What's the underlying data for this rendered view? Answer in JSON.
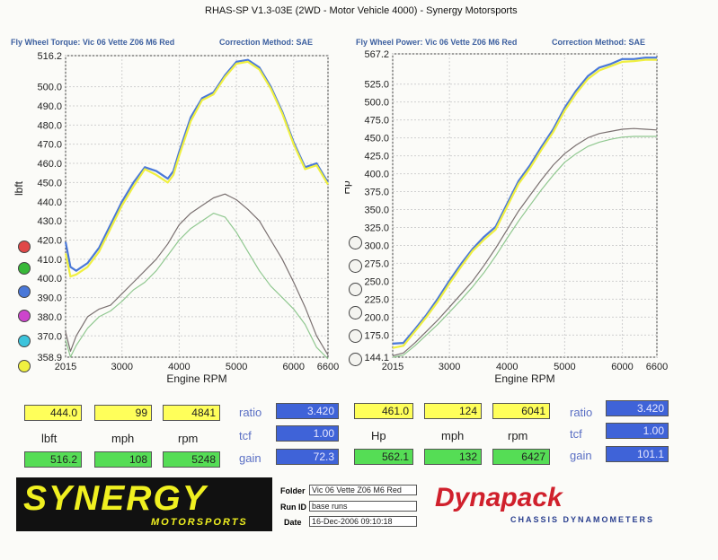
{
  "header": {
    "title": "RHAS-SP V1.3-03E  (2WD - Motor Vehicle 4000) - Synergy Motorsports",
    "left_sub": "Fly Wheel Torque: Vic 06 Vette Z06 M6 Red",
    "left_corr": "Correction Method: SAE",
    "right_sub": "Fly Wheel Power: Vic 06 Vette Z06 M6 Red",
    "right_corr": "Correction Method: SAE"
  },
  "colors": {
    "red": "#e04848",
    "green": "#38b838",
    "blue": "#4a78d8",
    "magenta": "#cc44cc",
    "cyan": "#3cc4dc",
    "yellow": "#f0f040",
    "gray": "#7a7070",
    "lightgreen": "#90c890"
  },
  "chart_data": [
    {
      "type": "line",
      "ylabel": "lbft",
      "xlabel": "Engine RPM",
      "xlim": [
        2015,
        6600
      ],
      "ylim": [
        358.9,
        516.2
      ],
      "x_ticks": [
        "2015",
        "3000",
        "4000",
        "5000",
        "6000",
        "6600"
      ],
      "y_ticks": [
        "516.2",
        "500.0",
        "490.0",
        "480.0",
        "470.0",
        "460.0",
        "450.0",
        "440.0",
        "430.0",
        "420.0",
        "410.0",
        "400.0",
        "390.0",
        "380.0",
        "370.0",
        "358.9"
      ],
      "series": [
        {
          "color": "blue",
          "x": [
            2015,
            2100,
            2200,
            2400,
            2600,
            2800,
            3000,
            3200,
            3400,
            3600,
            3800,
            3900,
            4000,
            4200,
            4400,
            4600,
            4800,
            5000,
            5200,
            5400,
            5600,
            5800,
            6000,
            6200,
            6400,
            6600
          ],
          "y": [
            419,
            406,
            404,
            408,
            416,
            428,
            440,
            450,
            458,
            456,
            452,
            456,
            466,
            484,
            494,
            497,
            506,
            513,
            514,
            510,
            500,
            487,
            471,
            458,
            460,
            450
          ]
        },
        {
          "color": "yellow",
          "x": [
            2015,
            2100,
            2200,
            2400,
            2600,
            2800,
            3000,
            3200,
            3400,
            3600,
            3800,
            3900,
            4000,
            4200,
            4400,
            4600,
            4800,
            5000,
            5200,
            5400,
            5600,
            5800,
            6000,
            6200,
            6400,
            6600
          ],
          "y": [
            413,
            401,
            402,
            406,
            414,
            426,
            438,
            448,
            457,
            454,
            450,
            454,
            464,
            482,
            493,
            496,
            505,
            512,
            513,
            509,
            499,
            486,
            470,
            457,
            459,
            449
          ]
        },
        {
          "color": "gray",
          "x": [
            2015,
            2100,
            2200,
            2400,
            2600,
            2800,
            3000,
            3200,
            3400,
            3600,
            3800,
            4000,
            4200,
            4400,
            4600,
            4800,
            5000,
            5200,
            5400,
            5600,
            5800,
            6000,
            6200,
            6400,
            6600
          ],
          "y": [
            372,
            362,
            370,
            380,
            384,
            386,
            392,
            398,
            404,
            410,
            418,
            428,
            434,
            438,
            442,
            444,
            441,
            436,
            430,
            420,
            410,
            398,
            385,
            370,
            360
          ]
        },
        {
          "color": "lightgreen",
          "x": [
            2015,
            2100,
            2200,
            2400,
            2600,
            2800,
            3000,
            3200,
            3400,
            3600,
            3800,
            4000,
            4200,
            4400,
            4600,
            4800,
            5000,
            5200,
            5400,
            5600,
            5800,
            6000,
            6200,
            6400,
            6600
          ],
          "y": [
            368,
            359,
            365,
            374,
            380,
            383,
            388,
            394,
            398,
            404,
            412,
            420,
            426,
            430,
            434,
            432,
            424,
            414,
            404,
            396,
            390,
            384,
            376,
            364,
            358
          ]
        }
      ]
    },
    {
      "type": "line",
      "ylabel": "Hp",
      "xlabel": "Engine RPM",
      "xlim": [
        2015,
        6600
      ],
      "ylim": [
        144.1,
        567.2
      ],
      "x_ticks": [
        "2015",
        "3000",
        "4000",
        "5000",
        "6000",
        "6600"
      ],
      "y_ticks": [
        "567.2",
        "525.0",
        "500.0",
        "475.0",
        "450.0",
        "425.0",
        "400.0",
        "375.0",
        "350.0",
        "325.0",
        "300.0",
        "275.0",
        "250.0",
        "225.0",
        "200.0",
        "175.0",
        "144.1"
      ],
      "series": [
        {
          "color": "blue",
          "x": [
            2015,
            2200,
            2400,
            2600,
            2800,
            3000,
            3200,
            3400,
            3600,
            3800,
            4000,
            4200,
            4400,
            4600,
            4800,
            5000,
            5200,
            5400,
            5600,
            5800,
            6000,
            6200,
            6400,
            6600
          ],
          "y": [
            163,
            164,
            183,
            203,
            226,
            251,
            274,
            295,
            312,
            326,
            358,
            390,
            412,
            438,
            462,
            492,
            516,
            536,
            548,
            553,
            560,
            560,
            562,
            562
          ]
        },
        {
          "color": "yellow",
          "x": [
            2015,
            2200,
            2400,
            2600,
            2800,
            3000,
            3200,
            3400,
            3600,
            3800,
            4000,
            4200,
            4400,
            4600,
            4800,
            5000,
            5200,
            5400,
            5600,
            5800,
            6000,
            6200,
            6400,
            6600
          ],
          "y": [
            157,
            160,
            180,
            200,
            222,
            247,
            270,
            292,
            308,
            322,
            354,
            386,
            408,
            434,
            458,
            488,
            512,
            532,
            544,
            550,
            556,
            557,
            559,
            559
          ]
        },
        {
          "color": "gray",
          "x": [
            2015,
            2200,
            2400,
            2600,
            2800,
            3000,
            3200,
            3400,
            3600,
            3800,
            4000,
            4200,
            4400,
            4600,
            4800,
            5000,
            5200,
            5400,
            5600,
            5800,
            6000,
            6200,
            6400,
            6600
          ],
          "y": [
            146,
            150,
            164,
            180,
            196,
            214,
            232,
            250,
            272,
            296,
            322,
            348,
            370,
            392,
            412,
            428,
            440,
            450,
            456,
            459,
            462,
            463,
            462,
            461
          ]
        },
        {
          "color": "lightgreen",
          "x": [
            2015,
            2200,
            2400,
            2600,
            2800,
            3000,
            3200,
            3400,
            3600,
            3800,
            4000,
            4200,
            4400,
            4600,
            4800,
            5000,
            5200,
            5400,
            5600,
            5800,
            6000,
            6200,
            6400,
            6600
          ],
          "y": [
            144,
            147,
            160,
            175,
            190,
            207,
            224,
            242,
            262,
            285,
            310,
            334,
            356,
            378,
            398,
            416,
            428,
            438,
            444,
            448,
            451,
            452,
            452,
            452
          ]
        }
      ]
    }
  ],
  "legend_left": [
    "red",
    "green",
    "blue",
    "magenta",
    "cyan",
    "yellow"
  ],
  "left_panel": {
    "row1": {
      "v1": "444.0",
      "v2": "99",
      "v3": "4841",
      "label": "ratio",
      "blue": "3.420"
    },
    "row2": {
      "l1": "lbft",
      "l2": "mph",
      "l3": "rpm",
      "label": "tcf",
      "blue": "1.00"
    },
    "row3": {
      "v1": "516.2",
      "v2": "108",
      "v3": "5248",
      "label": "gain",
      "blue": "72.3"
    }
  },
  "right_panel": {
    "row1": {
      "v1": "461.0",
      "v2": "124",
      "v3": "6041",
      "label": "ratio",
      "blue": "3.420"
    },
    "row2": {
      "l1": "Hp",
      "l2": "mph",
      "l3": "rpm",
      "label": "tcf",
      "blue": "1.00"
    },
    "row3": {
      "v1": "562.1",
      "v2": "132",
      "v3": "6427",
      "label": "gain",
      "blue": "101.1"
    }
  },
  "footer": {
    "logo_main": "SYNERGY",
    "logo_sub": "MOTORSPORTS",
    "folder_label": "Folder",
    "folder_value": "Vic 06 Vette Z06 M6 Red",
    "runid_label": "Run ID",
    "runid_value": "base runs",
    "date_label": "Date",
    "date_value": "16-Dec-2006  09:10:18",
    "brand": "Dynapack",
    "brand_sub": "CHASSIS DYNAMOMETERS"
  }
}
